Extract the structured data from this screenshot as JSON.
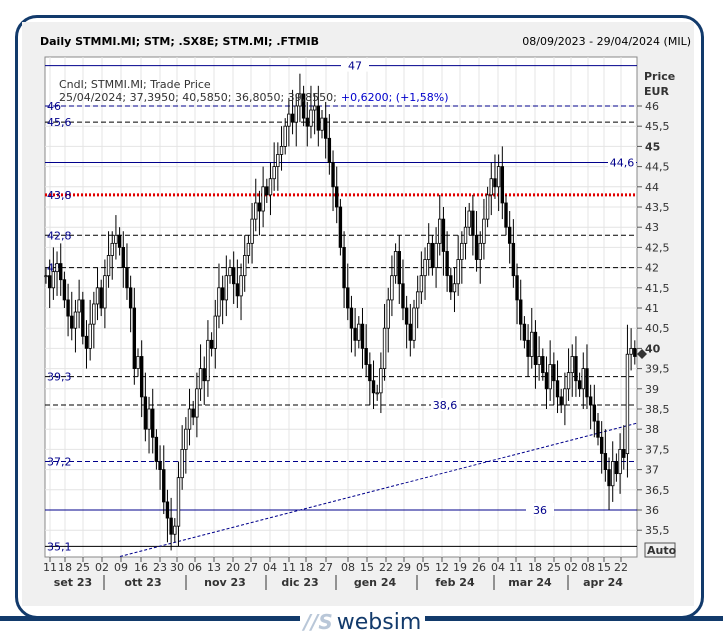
{
  "header": {
    "title": "Daily STMMI.MI; STM; .SX8E; STM.MI; .FTMIB",
    "range": "08/09/2023 - 29/04/2024 (MIL)"
  },
  "legend": {
    "line1": "Cndl; STMMI.MI; Trade Price",
    "line2": "25/04/2024; 37,3950; 40,5850; 36,8050; 39,8550;",
    "change": "+0,6200; (+1,58%)"
  },
  "axis": {
    "price_label": "Price",
    "currency": "EUR",
    "auto_label": "Auto"
  },
  "logo": {
    "text": "websim",
    "mark": "//S"
  },
  "colors": {
    "frame": "#123a6b",
    "blue_line": "#00008b",
    "red_line": "#e00000",
    "candle": "#000000"
  },
  "chart_data": {
    "type": "candlestick",
    "ylim": [
      35,
      47.2
    ],
    "y_ticks": [
      {
        "v": 46,
        "label": "46"
      },
      {
        "v": 45.5,
        "label": "45,5"
      },
      {
        "v": 45,
        "label": "45",
        "bold": true
      },
      {
        "v": 44.5,
        "label": "44,5"
      },
      {
        "v": 44,
        "label": "44"
      },
      {
        "v": 43.5,
        "label": "43,5"
      },
      {
        "v": 43,
        "label": "43"
      },
      {
        "v": 42.5,
        "label": "42,5"
      },
      {
        "v": 42,
        "label": "42"
      },
      {
        "v": 41.5,
        "label": "41,5"
      },
      {
        "v": 41,
        "label": "41"
      },
      {
        "v": 40.5,
        "label": "40,5"
      },
      {
        "v": 40,
        "label": "40",
        "bold": true
      },
      {
        "v": 39.5,
        "label": "39,5"
      },
      {
        "v": 39,
        "label": "39"
      },
      {
        "v": 38.5,
        "label": "38,5"
      },
      {
        "v": 38,
        "label": "38"
      },
      {
        "v": 37.5,
        "label": "37,5"
      },
      {
        "v": 37,
        "label": "37"
      },
      {
        "v": 36.5,
        "label": "36,5"
      },
      {
        "v": 36,
        "label": "36"
      },
      {
        "v": 35.5,
        "label": "35,5"
      }
    ],
    "x_day_labels": [
      "11",
      "18",
      "25",
      "02",
      "09",
      "16",
      "23",
      "30",
      "06",
      "13",
      "20",
      "27",
      "04",
      "11",
      "18",
      "27",
      "08",
      "15",
      "22",
      "29",
      "05",
      "12",
      "19",
      "26",
      "04",
      "11",
      "18",
      "25",
      "02",
      "08",
      "15",
      "22"
    ],
    "x_month_labels": [
      "set 23",
      "ott 23",
      "nov 23",
      "dic 23",
      "gen 24",
      "feb 24",
      "mar 24",
      "apr 24"
    ],
    "last_candle": {
      "date": "25/04/2024",
      "open": 37.395,
      "high": 40.585,
      "low": 36.805,
      "close": 39.855
    },
    "closes": [
      41.8,
      41.5,
      41.9,
      42.1,
      41.7,
      41.2,
      40.8,
      40.5,
      40.9,
      41.2,
      40.3,
      40.0,
      40.6,
      41.1,
      41.5,
      41.0,
      41.8,
      42.3,
      42.6,
      42.8,
      42.5,
      42.0,
      41.5,
      41.0,
      39.5,
      39.8,
      38.8,
      38.0,
      38.5,
      37.8,
      37.2,
      37.0,
      36.2,
      35.8,
      35.4,
      35.6,
      36.8,
      37.5,
      38.0,
      38.5,
      38.3,
      39.0,
      39.5,
      39.2,
      40.2,
      40.0,
      40.8,
      41.5,
      41.2,
      41.8,
      42.0,
      41.6,
      41.3,
      41.8,
      42.3,
      42.6,
      43.2,
      43.6,
      43.4,
      44.0,
      43.8,
      44.2,
      44.5,
      44.8,
      45.0,
      45.5,
      45.8,
      45.6,
      46.0,
      46.3,
      45.7,
      45.5,
      45.9,
      46.0,
      45.4,
      45.7,
      45.2,
      44.6,
      44.0,
      43.5,
      42.5,
      41.5,
      41.0,
      40.5,
      40.2,
      40.6,
      40.0,
      39.6,
      39.2,
      38.9,
      38.9,
      39.5,
      40.5,
      41.2,
      41.8,
      42.4,
      41.6,
      41.0,
      40.6,
      40.2,
      41.0,
      41.4,
      41.8,
      42.2,
      42.6,
      42.0,
      42.6,
      43.2,
      42.4,
      41.8,
      41.4,
      41.6,
      42.2,
      42.6,
      43.0,
      43.4,
      42.8,
      42.2,
      42.6,
      43.2,
      43.8,
      44.2,
      44.0,
      44.5,
      43.6,
      43.0,
      42.6,
      41.8,
      41.2,
      40.6,
      40.2,
      39.8,
      40.4,
      39.6,
      39.8,
      39.4,
      39.0,
      39.6,
      39.2,
      38.8,
      38.6,
      39.0,
      39.4,
      39.8,
      39.2,
      39.0,
      39.5,
      38.8,
      38.6,
      38.2,
      37.8,
      37.4,
      37.0,
      36.6,
      37.2,
      36.9,
      37.5,
      37.3,
      39.86,
      40.0,
      39.8
    ],
    "levels": [
      {
        "v": 47,
        "label": "47",
        "style": "solid",
        "color": "#00008b",
        "pos": "center"
      },
      {
        "v": 46,
        "label": "46",
        "style": "dashed",
        "color": "#00008b",
        "pos": "left"
      },
      {
        "v": 45.6,
        "label": "45,6",
        "style": "dashed",
        "color": "#000000",
        "pos": "left"
      },
      {
        "v": 44.6,
        "label": "44,6",
        "style": "solid",
        "color": "#00008b",
        "pos": "right"
      },
      {
        "v": 43.8,
        "label": "43,8",
        "style": "dotted",
        "color": "#e00000",
        "pos": "left"
      },
      {
        "v": 42.8,
        "label": "42,8",
        "style": "dashed",
        "color": "#000000",
        "pos": "left"
      },
      {
        "v": 42,
        "label": "42",
        "style": "dashed",
        "color": "#000000",
        "pos": "left"
      },
      {
        "v": 39.3,
        "label": "39,3",
        "style": "dashed",
        "color": "#000000",
        "pos": "left"
      },
      {
        "v": 38.6,
        "label": "38,6",
        "style": "dashed",
        "color": "#000000",
        "pos": "center"
      },
      {
        "v": 37.2,
        "label": "37,2",
        "style": "dashed",
        "color": "#00008b",
        "pos": "left"
      },
      {
        "v": 36,
        "label": "36",
        "style": "solid",
        "color": "#00008b",
        "pos": "center"
      },
      {
        "v": 35.1,
        "label": "35,1",
        "style": "solid",
        "color": "#000000",
        "pos": "left"
      }
    ],
    "trendline": {
      "from": 34.85,
      "to": 38.15,
      "style": "dashed",
      "color": "#00008b"
    }
  }
}
